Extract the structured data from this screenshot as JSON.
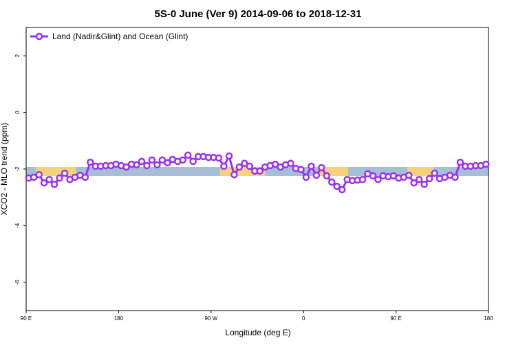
{
  "chart_data": {
    "type": "line",
    "title": "5S-0 June (Ver 9)   2014-09-06 to 2018-12-31",
    "x_label": "Longitude (deg E)",
    "y_label": "XCO2 - MLO trend (ppm)",
    "xlim": [
      90,
      540
    ],
    "xticks": [
      {
        "value": 90,
        "label": "90 E"
      },
      180,
      {
        "value": 270,
        "label": "90 W"
      },
      {
        "value": 360,
        "label": "0"
      },
      {
        "value": 450,
        "label": "90 E"
      },
      {
        "value": 540,
        "label": "180"
      }
    ],
    "ylim": [
      -7,
      3
    ],
    "yticks": [
      -6,
      -4,
      -2,
      0,
      2
    ],
    "legend": "top-left",
    "x": [
      92.5,
      97.5,
      102.5,
      107.5,
      112.5,
      117.5,
      122.5,
      127.5,
      132.5,
      137.5,
      142.5,
      147.5,
      152.5,
      157.5,
      162.5,
      167.5,
      172.5,
      177.5,
      182.5,
      187.5,
      192.5,
      197.5,
      202.5,
      207.5,
      212.5,
      217.5,
      222.5,
      227.5,
      232.5,
      237.5,
      242.5,
      247.5,
      252.5,
      257.5,
      262.5,
      267.5,
      272.5,
      277.5,
      282.5,
      287.5,
      292.5,
      297.5,
      302.5,
      307.5,
      312.5,
      317.5,
      322.5,
      327.5,
      332.5,
      337.5,
      342.5,
      347.5,
      352.5,
      357.5,
      362.5,
      367.5,
      372.5,
      377.5,
      382.5,
      387.5,
      392.5,
      397.5,
      402.5,
      407.5,
      412.5,
      417.5,
      422.5,
      427.5,
      432.5,
      437.5,
      442.5,
      447.5,
      452.5,
      457.5,
      462.5,
      467.5,
      472.5,
      477.5,
      482.5,
      487.5,
      492.5,
      497.5,
      502.5,
      507.5,
      512.5,
      517.5,
      522.5,
      527.5,
      532.5,
      537.5
    ],
    "series": [
      {
        "name": "Land (Nadir&Glint) and Ocean (Glint)",
        "color": "#9b30f0",
        "values": [
          -2.32,
          -2.29,
          -2.2,
          -2.49,
          -2.37,
          -2.54,
          -2.32,
          -2.15,
          -2.37,
          -2.29,
          -2.22,
          -2.29,
          -1.76,
          -1.9,
          -1.9,
          -1.88,
          -1.88,
          -1.83,
          -1.88,
          -1.93,
          -1.83,
          -1.85,
          -1.73,
          -1.88,
          -1.68,
          -1.85,
          -1.68,
          -1.78,
          -1.66,
          -1.73,
          -1.68,
          -1.51,
          -1.73,
          -1.56,
          -1.56,
          -1.59,
          -1.59,
          -1.61,
          -1.9,
          -1.54,
          -2.2,
          -1.93,
          -1.8,
          -1.9,
          -2.07,
          -2.07,
          -1.93,
          -1.88,
          -1.83,
          -1.93,
          -1.85,
          -1.8,
          -1.98,
          -2.02,
          -2.29,
          -1.9,
          -2.22,
          -1.95,
          -2.24,
          -2.46,
          -2.61,
          -2.73,
          -2.37,
          -2.41,
          -2.39,
          -2.37,
          -2.17,
          -2.24,
          -2.37,
          -2.24,
          -2.27,
          -2.24,
          -2.32,
          -2.29,
          -2.22,
          -2.49,
          -2.37,
          -2.54,
          -2.34,
          -2.15,
          -2.34,
          -2.29,
          -2.22,
          -2.29,
          -1.76,
          -1.9,
          -1.9,
          -1.88,
          -1.88,
          -1.83
        ]
      }
    ]
  }
}
